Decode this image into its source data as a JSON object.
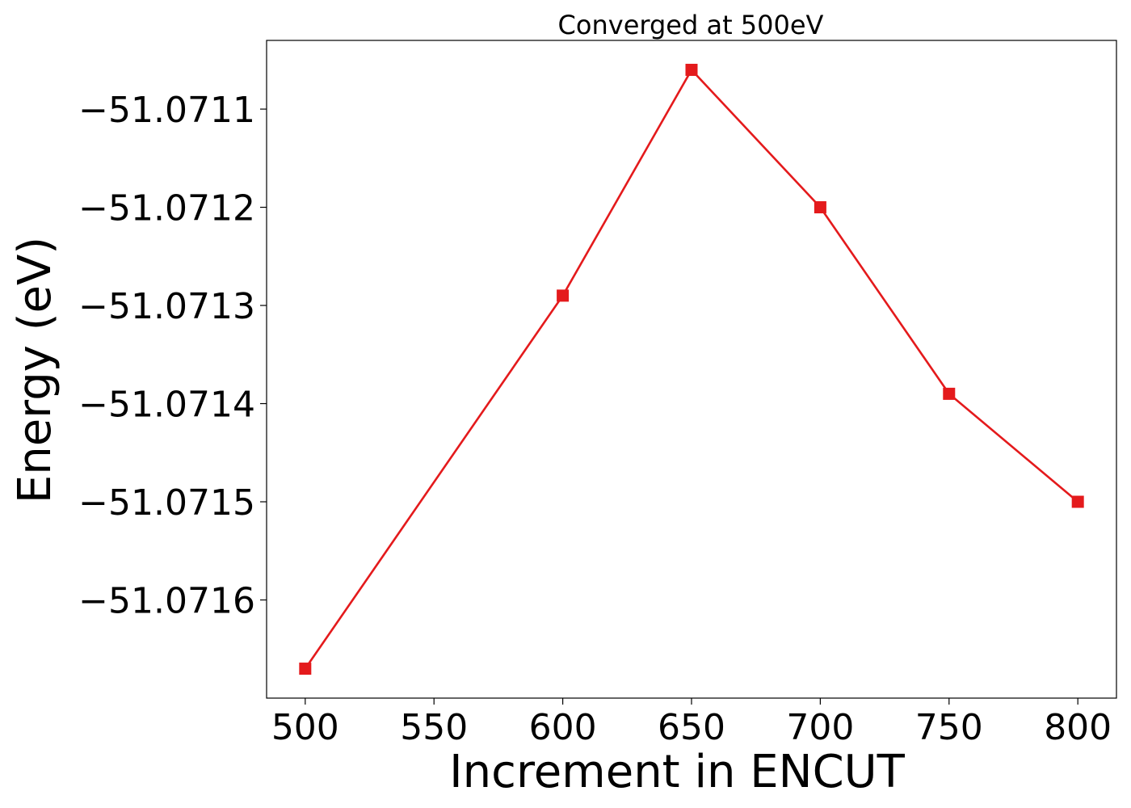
{
  "chart_data": {
    "type": "line",
    "title": "Converged at 500eV",
    "xlabel": "Increment in ENCUT",
    "ylabel": "Energy (eV)",
    "x": [
      500,
      600,
      650,
      700,
      750,
      800
    ],
    "series": [
      {
        "values": [
          -51.07167,
          -51.07129,
          -51.07106,
          -51.0712,
          -51.07139,
          -51.0715
        ],
        "color": "#e41a1c",
        "marker": "square"
      }
    ],
    "xlim": [
      485,
      815
    ],
    "ylim": [
      -51.0717,
      -51.07103
    ],
    "xticks": [
      500,
      550,
      600,
      650,
      700,
      750,
      800
    ],
    "xtick_labels": [
      "500",
      "550",
      "600",
      "650",
      "700",
      "750",
      "800"
    ],
    "yticks": [
      -51.0711,
      -51.0712,
      -51.0713,
      -51.0714,
      -51.0715,
      -51.0716
    ],
    "ytick_labels": [
      "−51.0711",
      "−51.0712",
      "−51.0713",
      "−51.0714",
      "−51.0715",
      "−51.0716"
    ],
    "grid": false,
    "legend": "none"
  }
}
